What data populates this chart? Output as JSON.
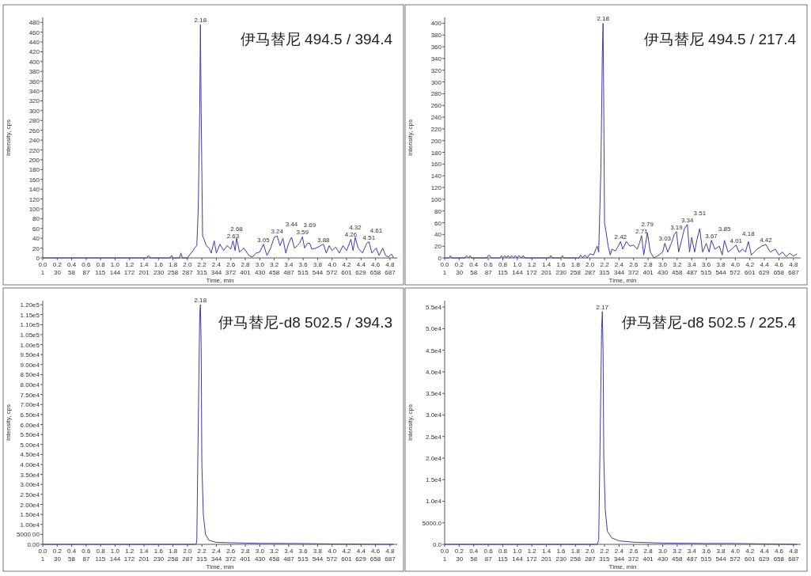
{
  "chart_data": [
    {
      "type": "line",
      "xlabel": "Time, min",
      "ylabel": "Intensity, cps",
      "grid": false,
      "xlim": [
        0,
        4.9
      ],
      "ylim": [
        0,
        490
      ],
      "xticks": [
        {
          "value": 0,
          "label": "0.0"
        },
        {
          "value": 0.2,
          "label": "0.2"
        },
        {
          "value": 0.4,
          "label": "0.4"
        },
        {
          "value": 0.6,
          "label": "0.6"
        },
        {
          "value": 0.8,
          "label": "0.8"
        },
        {
          "value": 1.0,
          "label": "1.0"
        },
        {
          "value": 1.2,
          "label": "1.2"
        },
        {
          "value": 1.4,
          "label": "1.4"
        },
        {
          "value": 1.6,
          "label": "1.6"
        },
        {
          "value": 1.8,
          "label": "1.8"
        },
        {
          "value": 2.0,
          "label": "2.0"
        },
        {
          "value": 2.2,
          "label": "2.2"
        },
        {
          "value": 2.4,
          "label": "2.4"
        },
        {
          "value": 2.6,
          "label": "2.6"
        },
        {
          "value": 2.8,
          "label": "2.8"
        },
        {
          "value": 3.0,
          "label": "3.0"
        },
        {
          "value": 3.2,
          "label": "3.2"
        },
        {
          "value": 3.4,
          "label": "3.4"
        },
        {
          "value": 3.6,
          "label": "3.6"
        },
        {
          "value": 3.8,
          "label": "3.8"
        },
        {
          "value": 4.0,
          "label": "4.0"
        },
        {
          "value": 4.2,
          "label": "4.2"
        },
        {
          "value": 4.4,
          "label": "4.4"
        },
        {
          "value": 4.6,
          "label": "4.6"
        },
        {
          "value": 4.8,
          "label": "4.8"
        }
      ],
      "x2lim": [
        1,
        701
      ],
      "x2ticks": [
        1,
        30,
        58,
        87,
        115,
        144,
        172,
        201,
        230,
        258,
        287,
        315,
        344,
        372,
        401,
        430,
        458,
        487,
        515,
        544,
        572,
        601,
        629,
        658,
        687
      ],
      "yticks": [
        0,
        20,
        40,
        60,
        80,
        100,
        120,
        140,
        160,
        180,
        200,
        220,
        240,
        260,
        280,
        300,
        320,
        340,
        360,
        380,
        400,
        420,
        440,
        460,
        480
      ],
      "x": [
        0,
        1.44,
        1.46,
        1.48,
        1.76,
        1.78,
        1.8,
        1.89,
        1.91,
        1.93,
        2.0,
        2.05,
        2.08,
        2.1,
        2.13,
        2.15,
        2.17,
        2.18,
        2.19,
        2.21,
        2.23,
        2.26,
        2.3,
        2.33,
        2.37,
        2.4,
        2.45,
        2.5,
        2.55,
        2.6,
        2.63,
        2.66,
        2.68,
        2.72,
        2.78,
        2.85,
        2.9,
        2.95,
        3.0,
        3.05,
        3.1,
        3.15,
        3.2,
        3.24,
        3.28,
        3.32,
        3.36,
        3.4,
        3.44,
        3.48,
        3.52,
        3.55,
        3.59,
        3.62,
        3.66,
        3.69,
        3.72,
        3.78,
        3.84,
        3.88,
        3.92,
        3.96,
        4.0,
        4.05,
        4.1,
        4.15,
        4.2,
        4.26,
        4.29,
        4.32,
        4.36,
        4.42,
        4.48,
        4.51,
        4.55,
        4.61,
        4.65,
        4.7,
        4.74,
        4.78,
        4.82,
        4.85
      ],
      "series": [
        {
          "color": "#3c3ca8",
          "values": [
            0,
            0,
            5,
            0,
            0,
            5,
            0,
            0,
            10,
            0,
            0,
            10,
            15,
            20,
            25,
            100,
            300,
            475,
            300,
            45,
            38,
            25,
            20,
            10,
            35,
            10,
            28,
            15,
            25,
            18,
            35,
            15,
            40,
            12,
            20,
            5,
            2,
            10,
            12,
            28,
            5,
            20,
            42,
            45,
            25,
            40,
            10,
            30,
            42,
            20,
            25,
            30,
            43,
            20,
            30,
            30,
            18,
            20,
            25,
            28,
            10,
            25,
            15,
            22,
            10,
            25,
            15,
            38,
            15,
            42,
            20,
            10,
            30,
            33,
            10,
            20,
            5,
            20,
            5,
            2,
            8,
            0
          ]
        }
      ],
      "annotations": [
        "伊马替尼 494.5 / 394.4",
        {
          "text": "2.18",
          "x": 2.18,
          "y": 475
        },
        {
          "text": "2.63",
          "x": 2.63,
          "y": 35
        },
        {
          "text": "2.68",
          "x": 2.68,
          "y": 40
        },
        {
          "text": "3.05",
          "x": 3.05,
          "y": 28
        },
        {
          "text": "3.24",
          "x": 3.24,
          "y": 45
        },
        {
          "text": "3.44",
          "x": 3.44,
          "y": 42
        },
        {
          "text": "3.59",
          "x": 3.59,
          "y": 43
        },
        {
          "text": "3.69",
          "x": 3.69,
          "y": 30
        },
        {
          "text": "3.88",
          "x": 3.88,
          "y": 28
        },
        {
          "text": "4.26",
          "x": 4.26,
          "y": 38
        },
        {
          "text": "4.32",
          "x": 4.32,
          "y": 42
        },
        {
          "text": "4.51",
          "x": 4.51,
          "y": 33
        },
        {
          "text": "4.61",
          "x": 4.61,
          "y": 20
        }
      ]
    },
    {
      "type": "line",
      "xlabel": "Time, min",
      "ylabel": "Intensity, cps",
      "grid": false,
      "xlim": [
        0,
        4.9
      ],
      "ylim": [
        0,
        410
      ],
      "xticks": [
        {
          "value": 0,
          "label": "0.0"
        },
        {
          "value": 0.2,
          "label": "0.2"
        },
        {
          "value": 0.4,
          "label": "0.4"
        },
        {
          "value": 0.6,
          "label": "0.6"
        },
        {
          "value": 0.8,
          "label": "0.8"
        },
        {
          "value": 1.0,
          "label": "1.0"
        },
        {
          "value": 1.2,
          "label": "1.2"
        },
        {
          "value": 1.4,
          "label": "1.4"
        },
        {
          "value": 1.6,
          "label": "1.6"
        },
        {
          "value": 1.8,
          "label": "1.8"
        },
        {
          "value": 2.0,
          "label": "2.0"
        },
        {
          "value": 2.2,
          "label": "2.2"
        },
        {
          "value": 2.4,
          "label": "2.4"
        },
        {
          "value": 2.6,
          "label": "2.6"
        },
        {
          "value": 2.8,
          "label": "2.8"
        },
        {
          "value": 3.0,
          "label": "3.0"
        },
        {
          "value": 3.2,
          "label": "3.2"
        },
        {
          "value": 3.4,
          "label": "3.4"
        },
        {
          "value": 3.6,
          "label": "3.6"
        },
        {
          "value": 3.8,
          "label": "3.8"
        },
        {
          "value": 4.0,
          "label": "4.0"
        },
        {
          "value": 4.2,
          "label": "4.2"
        },
        {
          "value": 4.4,
          "label": "4.4"
        },
        {
          "value": 4.6,
          "label": "4.6"
        },
        {
          "value": 4.8,
          "label": "4.8"
        }
      ],
      "x2lim": [
        1,
        701
      ],
      "x2ticks": [
        1,
        30,
        58,
        87,
        115,
        144,
        172,
        201,
        230,
        258,
        287,
        315,
        344,
        372,
        401,
        430,
        458,
        487,
        515,
        544,
        572,
        601,
        629,
        658,
        687
      ],
      "yticks": [
        0,
        20,
        40,
        60,
        80,
        100,
        120,
        140,
        160,
        180,
        200,
        220,
        240,
        260,
        280,
        300,
        320,
        340,
        360,
        380,
        400
      ],
      "x": [
        0,
        0.06,
        0.08,
        0.1,
        0.28,
        0.3,
        0.33,
        0.35,
        0.37,
        0.58,
        0.6,
        0.62,
        0.64,
        0.76,
        0.78,
        0.8,
        0.83,
        0.85,
        0.87,
        0.9,
        0.92,
        0.95,
        0.97,
        1.0,
        1.02,
        1.06,
        1.08,
        1.1,
        1.44,
        1.46,
        1.48,
        1.6,
        1.62,
        1.64,
        1.85,
        1.87,
        1.9,
        1.93,
        1.96,
        2.0,
        2.05,
        2.08,
        2.1,
        2.12,
        2.15,
        2.17,
        2.18,
        2.19,
        2.2,
        2.22,
        2.25,
        2.28,
        2.3,
        2.35,
        2.38,
        2.42,
        2.45,
        2.5,
        2.55,
        2.6,
        2.65,
        2.68,
        2.71,
        2.74,
        2.79,
        2.83,
        2.88,
        2.95,
        3.0,
        3.03,
        3.07,
        3.12,
        3.16,
        3.19,
        3.22,
        3.26,
        3.3,
        3.34,
        3.37,
        3.4,
        3.44,
        3.47,
        3.51,
        3.55,
        3.6,
        3.64,
        3.67,
        3.72,
        3.78,
        3.82,
        3.85,
        3.9,
        3.95,
        4.01,
        4.05,
        4.1,
        4.14,
        4.18,
        4.22,
        4.3,
        4.36,
        4.42,
        4.48,
        4.55,
        4.6,
        4.65,
        4.7,
        4.75,
        4.8,
        4.85
      ],
      "series": [
        {
          "color": "#3c3ca8",
          "values": [
            0,
            0,
            4,
            0,
            0,
            4,
            0,
            4,
            0,
            0,
            4,
            4,
            0,
            0,
            4,
            0,
            4,
            0,
            4,
            0,
            4,
            0,
            4,
            0,
            4,
            0,
            4,
            0,
            0,
            4,
            0,
            0,
            4,
            0,
            0,
            5,
            0,
            5,
            0,
            7,
            5,
            15,
            20,
            10,
            150,
            350,
            400,
            250,
            60,
            45,
            20,
            5,
            15,
            12,
            18,
            28,
            15,
            28,
            20,
            22,
            15,
            25,
            38,
            5,
            43,
            10,
            0,
            5,
            10,
            25,
            10,
            25,
            40,
            45,
            10,
            30,
            50,
            57,
            10,
            35,
            10,
            30,
            50,
            10,
            25,
            10,
            30,
            15,
            20,
            5,
            30,
            10,
            15,
            22,
            10,
            15,
            10,
            28,
            5,
            15,
            20,
            23,
            10,
            15,
            5,
            10,
            2,
            8,
            3,
            7
          ]
        }
      ],
      "annotations": [
        "伊马替尼 494.5 / 217.4",
        {
          "text": "2.18",
          "x": 2.18,
          "y": 400
        },
        {
          "text": "2.42",
          "x": 2.42,
          "y": 28
        },
        {
          "text": "2.71",
          "x": 2.71,
          "y": 38
        },
        {
          "text": "2.79",
          "x": 2.79,
          "y": 43
        },
        {
          "text": "3.03",
          "x": 3.03,
          "y": 25
        },
        {
          "text": "3.19",
          "x": 3.19,
          "y": 45
        },
        {
          "text": "3.34",
          "x": 3.34,
          "y": 57
        },
        {
          "text": "3.51",
          "x": 3.51,
          "y": 50
        },
        {
          "text": "3.67",
          "x": 3.67,
          "y": 30
        },
        {
          "text": "3.85",
          "x": 3.85,
          "y": 30
        },
        {
          "text": "4.01",
          "x": 4.01,
          "y": 22
        },
        {
          "text": "4.18",
          "x": 4.18,
          "y": 28
        },
        {
          "text": "4.42",
          "x": 4.42,
          "y": 23
        }
      ]
    },
    {
      "type": "line",
      "xlabel": "Time, min",
      "ylabel": "Intensity, cps",
      "grid": false,
      "xlim": [
        0,
        4.9
      ],
      "ylim": [
        0,
        122000
      ],
      "xticks": [
        {
          "value": 0,
          "label": "0.0"
        },
        {
          "value": 0.2,
          "label": "0.2"
        },
        {
          "value": 0.4,
          "label": "0.4"
        },
        {
          "value": 0.6,
          "label": "0.6"
        },
        {
          "value": 0.8,
          "label": "0.8"
        },
        {
          "value": 1.0,
          "label": "1.0"
        },
        {
          "value": 1.2,
          "label": "1.2"
        },
        {
          "value": 1.4,
          "label": "1.4"
        },
        {
          "value": 1.6,
          "label": "1.6"
        },
        {
          "value": 1.8,
          "label": "1.8"
        },
        {
          "value": 2.0,
          "label": "2.0"
        },
        {
          "value": 2.2,
          "label": "2.2"
        },
        {
          "value": 2.4,
          "label": "2.4"
        },
        {
          "value": 2.6,
          "label": "2.6"
        },
        {
          "value": 2.8,
          "label": "2.8"
        },
        {
          "value": 3.0,
          "label": "3.0"
        },
        {
          "value": 3.2,
          "label": "3.2"
        },
        {
          "value": 3.4,
          "label": "3.4"
        },
        {
          "value": 3.6,
          "label": "3.6"
        },
        {
          "value": 3.8,
          "label": "3.8"
        },
        {
          "value": 4.0,
          "label": "4.0"
        },
        {
          "value": 4.2,
          "label": "4.2"
        },
        {
          "value": 4.4,
          "label": "4.4"
        },
        {
          "value": 4.6,
          "label": "4.6"
        },
        {
          "value": 4.8,
          "label": "4.8"
        }
      ],
      "x2lim": [
        1,
        701
      ],
      "x2ticks": [
        1,
        30,
        58,
        87,
        115,
        144,
        172,
        201,
        230,
        258,
        287,
        315,
        344,
        372,
        401,
        430,
        458,
        487,
        515,
        544,
        572,
        601,
        629,
        658,
        687
      ],
      "yticks": [
        {
          "value": 0,
          "label": "0.00"
        },
        {
          "value": 5000,
          "label": "5000.00"
        },
        {
          "value": 10000,
          "label": "1.00e4"
        },
        {
          "value": 15000,
          "label": "1.50e4"
        },
        {
          "value": 20000,
          "label": "2.00e4"
        },
        {
          "value": 25000,
          "label": "2.50e4"
        },
        {
          "value": 30000,
          "label": "3.00e4"
        },
        {
          "value": 35000,
          "label": "3.50e4"
        },
        {
          "value": 40000,
          "label": "4.00e4"
        },
        {
          "value": 45000,
          "label": "4.50e4"
        },
        {
          "value": 50000,
          "label": "5.00e4"
        },
        {
          "value": 55000,
          "label": "5.50e4"
        },
        {
          "value": 60000,
          "label": "6.00e4"
        },
        {
          "value": 65000,
          "label": "6.50e4"
        },
        {
          "value": 70000,
          "label": "7.00e4"
        },
        {
          "value": 75000,
          "label": "7.50e4"
        },
        {
          "value": 80000,
          "label": "8.00e4"
        },
        {
          "value": 85000,
          "label": "8.50e4"
        },
        {
          "value": 90000,
          "label": "9.00e4"
        },
        {
          "value": 95000,
          "label": "9.50e4"
        },
        {
          "value": 100000,
          "label": "1.00e5"
        },
        {
          "value": 105000,
          "label": "1.05e5"
        },
        {
          "value": 110000,
          "label": "1.10e5"
        },
        {
          "value": 115000,
          "label": "1.15e5"
        },
        {
          "value": 120000,
          "label": "1.20e5"
        }
      ],
      "x": [
        0,
        2.12,
        2.13,
        2.15,
        2.17,
        2.18,
        2.19,
        2.2,
        2.22,
        2.25,
        2.3,
        2.4,
        2.6,
        3.0,
        3.6,
        4.0,
        4.4,
        4.85
      ],
      "series": [
        {
          "color": "#3c3ca8",
          "values": [
            0,
            0,
            2000,
            60000,
            115000,
            120000,
            100000,
            40000,
            15000,
            5000,
            2000,
            1000,
            800,
            500,
            400,
            200,
            100,
            0
          ]
        }
      ],
      "annotations": [
        "伊马替尼-d8 502.5 / 394.3",
        {
          "text": "2.18",
          "x": 2.18,
          "y": 120000
        }
      ]
    },
    {
      "type": "line",
      "xlabel": "Time, min",
      "ylabel": "Intensity, cps",
      "grid": false,
      "xlim": [
        0,
        4.9
      ],
      "ylim": [
        0,
        56500
      ],
      "xticks": [
        {
          "value": 0,
          "label": "0.0"
        },
        {
          "value": 0.2,
          "label": "0.2"
        },
        {
          "value": 0.4,
          "label": "0.4"
        },
        {
          "value": 0.6,
          "label": "0.6"
        },
        {
          "value": 0.8,
          "label": "0.8"
        },
        {
          "value": 1.0,
          "label": "1.0"
        },
        {
          "value": 1.2,
          "label": "1.2"
        },
        {
          "value": 1.4,
          "label": "1.4"
        },
        {
          "value": 1.6,
          "label": "1.6"
        },
        {
          "value": 1.8,
          "label": "1.8"
        },
        {
          "value": 2.0,
          "label": "2.0"
        },
        {
          "value": 2.2,
          "label": "2.2"
        },
        {
          "value": 2.4,
          "label": "2.4"
        },
        {
          "value": 2.6,
          "label": "2.6"
        },
        {
          "value": 2.8,
          "label": "2.8"
        },
        {
          "value": 3.0,
          "label": "3.0"
        },
        {
          "value": 3.2,
          "label": "3.2"
        },
        {
          "value": 3.4,
          "label": "3.4"
        },
        {
          "value": 3.6,
          "label": "3.6"
        },
        {
          "value": 3.8,
          "label": "3.8"
        },
        {
          "value": 4.0,
          "label": "4.0"
        },
        {
          "value": 4.2,
          "label": "4.2"
        },
        {
          "value": 4.4,
          "label": "4.4"
        },
        {
          "value": 4.6,
          "label": "4.6"
        },
        {
          "value": 4.8,
          "label": "4.8"
        }
      ],
      "x2lim": [
        1,
        701
      ],
      "x2ticks": [
        1,
        30,
        58,
        87,
        115,
        144,
        172,
        201,
        230,
        258,
        287,
        315,
        344,
        372,
        401,
        430,
        458,
        487,
        515,
        544,
        572,
        601,
        629,
        658,
        687
      ],
      "yticks": [
        {
          "value": 0,
          "label": "0.0"
        },
        {
          "value": 5000,
          "label": "5000.0"
        },
        {
          "value": 10000,
          "label": "1.0e4"
        },
        {
          "value": 15000,
          "label": "1.5e4"
        },
        {
          "value": 20000,
          "label": "2.0e4"
        },
        {
          "value": 25000,
          "label": "2.5e4"
        },
        {
          "value": 30000,
          "label": "3.0e4"
        },
        {
          "value": 35000,
          "label": "3.5e4"
        },
        {
          "value": 40000,
          "label": "4.0e4"
        },
        {
          "value": 45000,
          "label": "4.5e4"
        },
        {
          "value": 50000,
          "label": "5.0e4"
        },
        {
          "value": 55000,
          "label": "5.5e4"
        }
      ],
      "x": [
        0,
        2.1,
        2.12,
        2.14,
        2.16,
        2.17,
        2.18,
        2.19,
        2.21,
        2.24,
        2.3,
        2.4,
        2.6,
        3.0,
        3.6,
        4.0,
        4.4,
        4.85
      ],
      "series": [
        {
          "color": "#3c3ca8",
          "values": [
            0,
            0,
            1000,
            25000,
            50000,
            54000,
            45000,
            20000,
            8000,
            3000,
            1500,
            800,
            500,
            300,
            200,
            200,
            100,
            0
          ]
        }
      ],
      "annotations": [
        "伊马替尼-d8 502.5 / 225.4",
        {
          "text": "2.17",
          "x": 2.17,
          "y": 54000
        }
      ]
    }
  ]
}
